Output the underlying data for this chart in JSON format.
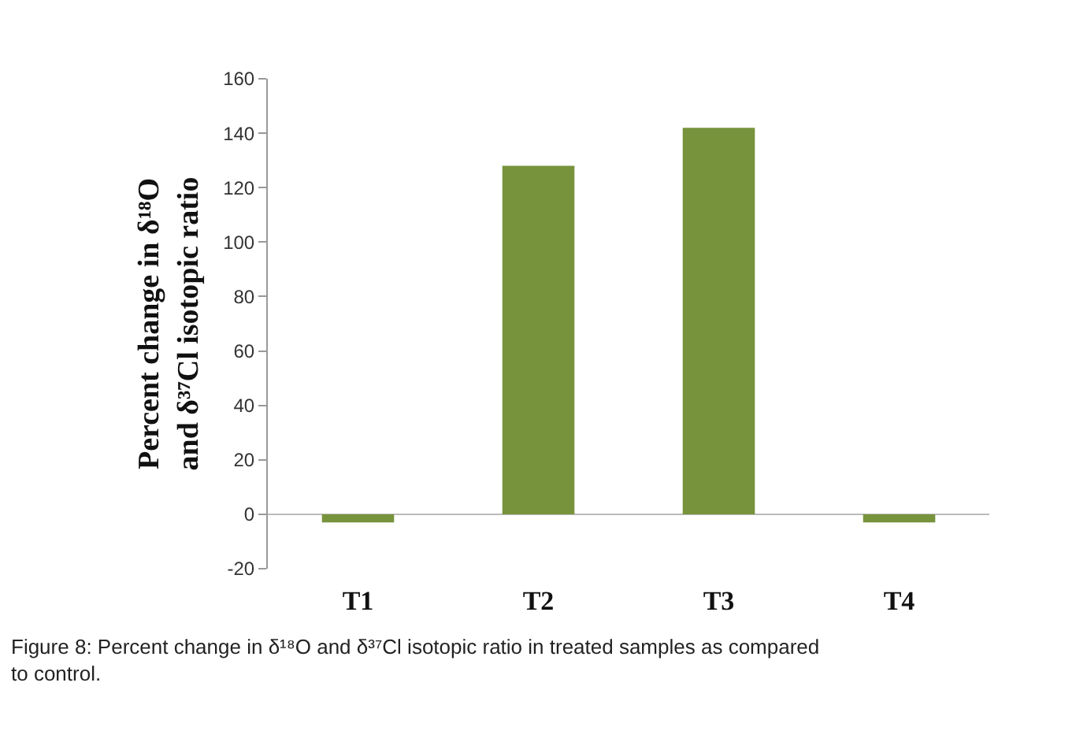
{
  "chart_data": {
    "type": "bar",
    "ylabel": "Percent change in δ¹⁸O and δ³⁷Cl isotopic ratio",
    "categories": [
      "T1",
      "T2",
      "T3",
      "T4"
    ],
    "values": [
      -3,
      128,
      142,
      -3
    ],
    "color": "#77933c",
    "ylim": [
      -20,
      160
    ],
    "yticks": [
      -20,
      0,
      20,
      40,
      60,
      80,
      100,
      120,
      140,
      160
    ],
    "legend": false,
    "annotations": [
      "Figure 8: Percent change in δ¹⁸O and δ³⁷Cl isotopic ratio in treated samples as compared to control."
    ]
  }
}
